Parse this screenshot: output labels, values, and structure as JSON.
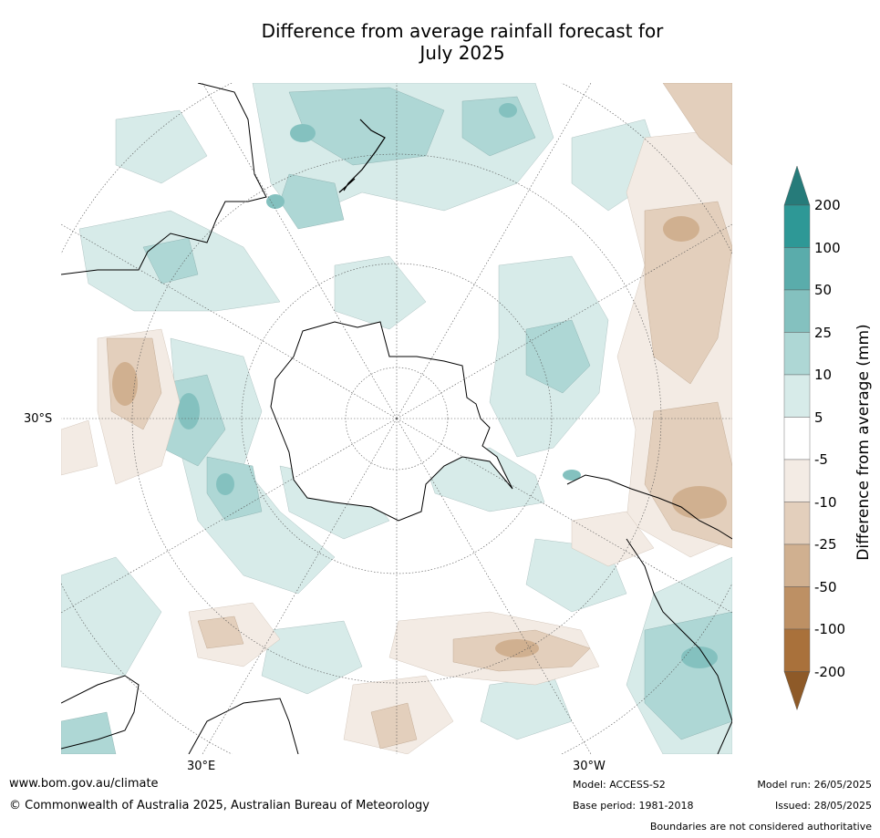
{
  "title": {
    "line1": "Difference from average rainfall forecast for",
    "line2": "July 2025"
  },
  "axis_labels": {
    "left": "30°S",
    "bottom_left": "30°E",
    "bottom_right": "30°W"
  },
  "colorbar": {
    "label": "Difference from average (mm)",
    "ticks": [
      "200",
      "100",
      "50",
      "25",
      "10",
      "5",
      "-5",
      "-10",
      "-25",
      "-50",
      "-100",
      "-200"
    ],
    "colors": {
      "over_200": "#267b7a",
      "100_200": "#2e9896",
      "50_100": "#5aacab",
      "25_50": "#84c1bf",
      "10_25": "#aed7d5",
      "5_10": "#d7ebe9",
      "neutral": "#ffffff",
      "m5_m10": "#f3ebe4",
      "m10_m25": "#e3cfbc",
      "m25_m50": "#d0b090",
      "m50_m100": "#bd9064",
      "m100_m200": "#a9713b",
      "under_m200": "#8e5a28"
    }
  },
  "footer": {
    "url": "www.bom.gov.au/climate",
    "copyright": "© Commonwealth of Australia 2025, Australian Bureau of Meteorology",
    "model": "Model: ACCESS-S2",
    "base_period": "Base period: 1981-2018",
    "model_run": "Model run: 26/05/2025",
    "issued": "Issued: 28/05/2025",
    "disclaimer": "Boundaries are not considered authoritative"
  }
}
